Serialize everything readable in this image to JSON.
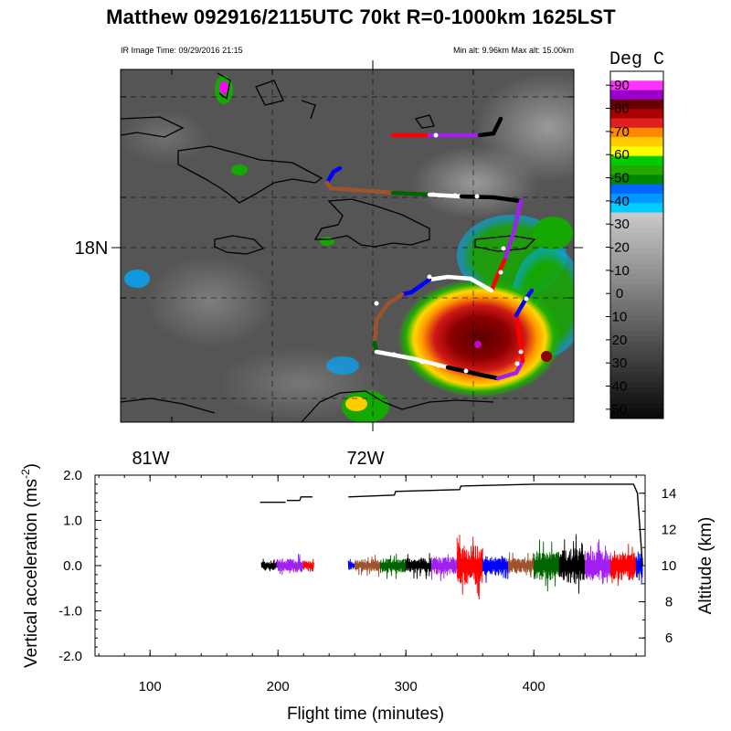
{
  "title": "Matthew 092916/2115UTC 70kt  R=0-1000km 1625LST",
  "ir_time": "IR Image Time: 09/29/2016 21:15",
  "alt_range": "Min alt:  9.96km  Max alt: 15.00km",
  "map": {
    "lat_label": "18N",
    "lon_labels": [
      "81W",
      "72W"
    ]
  },
  "colorbar": {
    "title": "Deg C",
    "ticks": [
      "-90",
      "-80",
      "-70",
      "-60",
      "-50",
      "-40",
      "-30",
      "-20",
      "-10",
      "0",
      "10",
      "20",
      "30",
      "40",
      "50"
    ],
    "colors": [
      "#ffffff",
      "#ff33ff",
      "#9900cc",
      "#660000",
      "#aa0000",
      "#e02020",
      "#ff8800",
      "#ffcc00",
      "#ffff00",
      "#00cc00",
      "#22aa00",
      "#008800",
      "#0066ff",
      "#0099ff",
      "#00ccff"
    ]
  },
  "chart_data": {
    "type": "line",
    "title": "",
    "xlabel": "Flight time (minutes)",
    "ylabel": "Vertical acceleration (ms-2)",
    "y2label": "Altitude (km)",
    "xlim": [
      57,
      487
    ],
    "ylim": [
      -2.0,
      2.0
    ],
    "y2lim": [
      5,
      15
    ],
    "x_ticks": [
      "100",
      "200",
      "300",
      "400"
    ],
    "y_ticks": [
      "2.0",
      "1.0",
      "0.0",
      "-1.0",
      "-2.0"
    ],
    "y2_ticks": [
      "6",
      "8",
      "10",
      "12",
      "14"
    ],
    "altitude_series": [
      {
        "x": 186,
        "y": 13.5
      },
      {
        "x": 206,
        "y": 13.5
      },
      {
        "x": 207,
        "y": 13.6
      },
      {
        "x": 217,
        "y": 13.6
      },
      {
        "x": 218,
        "y": 13.8
      },
      {
        "x": 227,
        "y": 13.8
      },
      {
        "x": 255,
        "y": 13.8
      },
      {
        "x": 291,
        "y": 13.9
      },
      {
        "x": 292,
        "y": 14.1
      },
      {
        "x": 342,
        "y": 14.2
      },
      {
        "x": 343,
        "y": 14.4
      },
      {
        "x": 400,
        "y": 14.5
      },
      {
        "x": 478,
        "y": 14.5
      },
      {
        "x": 481,
        "y": 14.0
      },
      {
        "x": 485,
        "y": 10.0
      }
    ],
    "acceleration_segments": [
      {
        "x0": 187,
        "x1": 199,
        "color": "#000000",
        "amp": 0.2
      },
      {
        "x0": 199,
        "x1": 220,
        "color": "#a020f0",
        "amp": 0.28
      },
      {
        "x0": 220,
        "x1": 228,
        "color": "#ff0000",
        "amp": 0.2
      },
      {
        "x0": 255,
        "x1": 260,
        "color": "#0000ff",
        "amp": 0.2
      },
      {
        "x0": 260,
        "x1": 280,
        "color": "#a0522d",
        "amp": 0.25
      },
      {
        "x0": 280,
        "x1": 300,
        "color": "#006400",
        "amp": 0.3
      },
      {
        "x0": 300,
        "x1": 320,
        "color": "#000000",
        "amp": 0.3
      },
      {
        "x0": 320,
        "x1": 340,
        "color": "#a020f0",
        "amp": 0.35
      },
      {
        "x0": 340,
        "x1": 360,
        "color": "#ff0000",
        "amp": 0.8
      },
      {
        "x0": 360,
        "x1": 380,
        "color": "#0000ff",
        "amp": 0.4
      },
      {
        "x0": 380,
        "x1": 400,
        "color": "#a0522d",
        "amp": 0.3
      },
      {
        "x0": 400,
        "x1": 420,
        "color": "#006400",
        "amp": 0.6
      },
      {
        "x0": 420,
        "x1": 440,
        "color": "#000000",
        "amp": 0.7
      },
      {
        "x0": 440,
        "x1": 460,
        "color": "#a020f0",
        "amp": 0.6
      },
      {
        "x0": 460,
        "x1": 480,
        "color": "#ff0000",
        "amp": 0.6
      },
      {
        "x0": 480,
        "x1": 485,
        "color": "#0000ff",
        "amp": 0.5
      }
    ]
  }
}
